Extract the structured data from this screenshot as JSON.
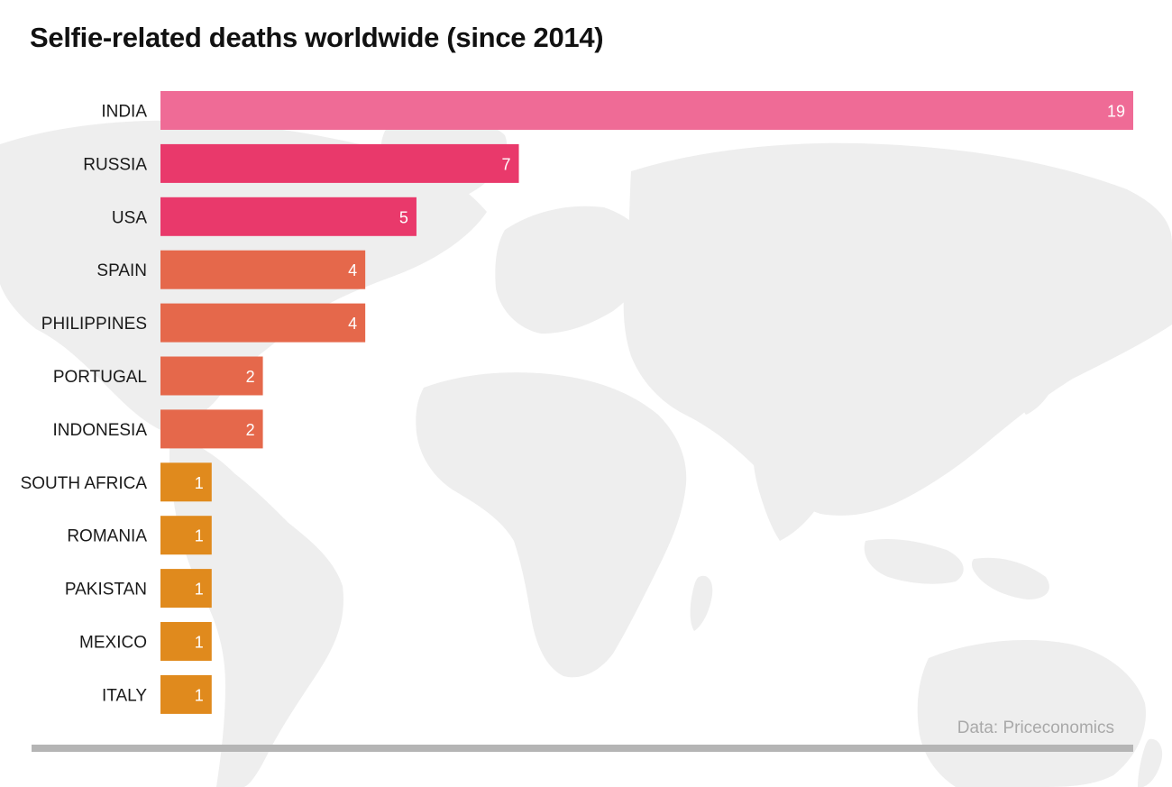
{
  "title": "Selfie-related deaths worldwide (since 2014)",
  "source": "Data: Priceconomics",
  "colors": {
    "background_map": "#eeeeee",
    "baseline": "#b5b5b5"
  },
  "chart_data": {
    "type": "bar",
    "orientation": "horizontal",
    "title": "Selfie-related deaths worldwide (since 2014)",
    "xlabel": "",
    "ylabel": "",
    "xlim": [
      0,
      19
    ],
    "grid": false,
    "categories": [
      "INDIA",
      "RUSSIA",
      "USA",
      "SPAIN",
      "PHILIPPINES",
      "PORTUGAL",
      "INDONESIA",
      "SOUTH AFRICA",
      "ROMANIA",
      "PAKISTAN",
      "MEXICO",
      "ITALY"
    ],
    "values": [
      19,
      7,
      5,
      4,
      4,
      2,
      2,
      1,
      1,
      1,
      1,
      1
    ],
    "bar_colors": [
      "#ef6b96",
      "#e9396b",
      "#e9396b",
      "#e5684b",
      "#e5684b",
      "#e5684b",
      "#e5684b",
      "#e08a1d",
      "#e08a1d",
      "#e08a1d",
      "#e08a1d",
      "#e08a1d"
    ],
    "data_labels": [
      "19",
      "7",
      "5",
      "4",
      "4",
      "2",
      "2",
      "1",
      "1",
      "1",
      "1",
      "1"
    ]
  }
}
